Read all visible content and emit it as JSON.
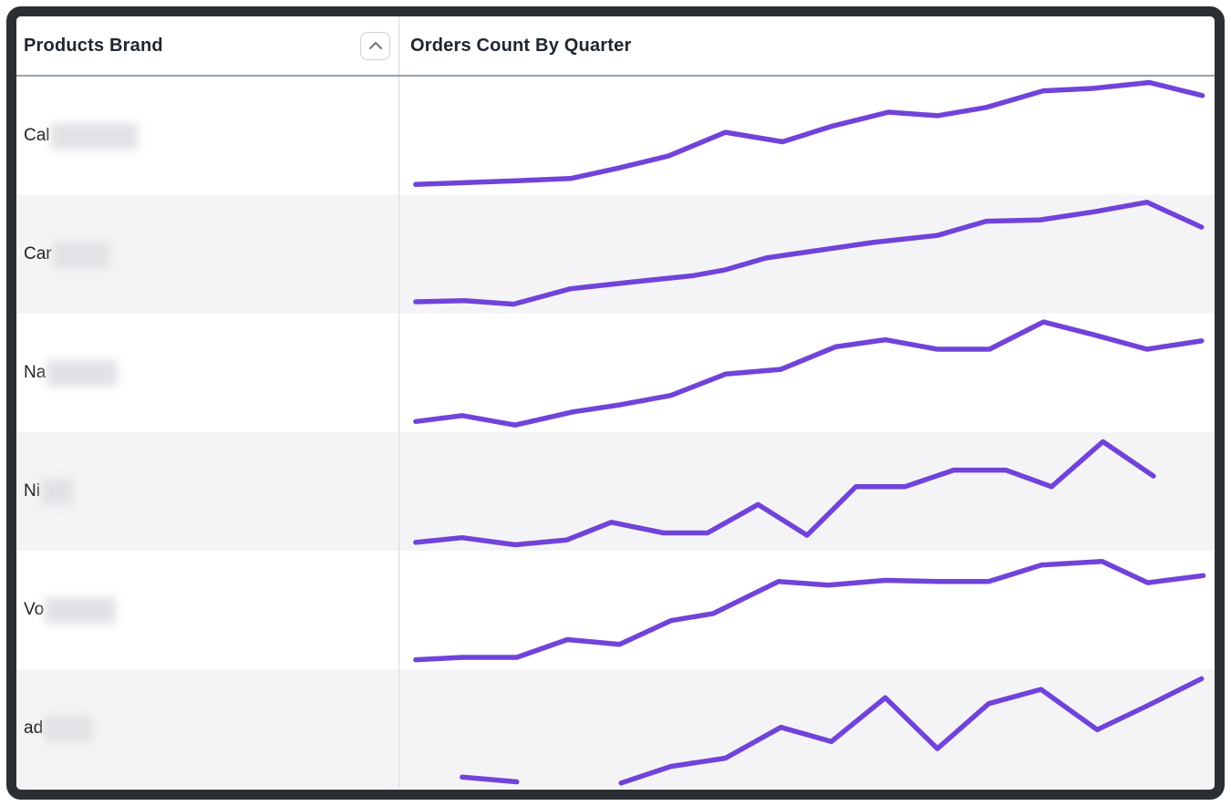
{
  "window": {
    "frame_color": "#2c2f31",
    "stripe_color": "#f4f4f6"
  },
  "table": {
    "header": {
      "brand_column": "Products Brand",
      "chart_column": "Orders Count By Quarter",
      "sort_icon": "chevron-up"
    },
    "rows": [
      {
        "label_prefix": "Cal",
        "redacted": true,
        "redacted_width": 95
      },
      {
        "label_prefix": "Car",
        "redacted": true,
        "redacted_width": 62
      },
      {
        "label_prefix": "Na",
        "redacted": true,
        "redacted_width": 78
      },
      {
        "label_prefix": "Ni",
        "redacted": true,
        "redacted_width": 36
      },
      {
        "label_prefix": "Vo",
        "redacted": true,
        "redacted_width": 78
      },
      {
        "label_prefix": "ad",
        "redacted": true,
        "redacted_width": 53
      }
    ]
  },
  "chart_data": {
    "type": "line",
    "title": "Orders Count By Quarter",
    "xlabel": "quarter (tick labels not shown)",
    "ylabel": "orders count (axis not shown; values estimated, normalized 0-100 per row)",
    "grid": false,
    "legend": "none",
    "line_color": "#7143da",
    "series": [
      {
        "name": "Cal…",
        "segments": [
          [
            {
              "x": 0.02,
              "v": 9
            },
            {
              "x": 0.14,
              "v": 12
            },
            {
              "x": 0.21,
              "v": 14
            },
            {
              "x": 0.27,
              "v": 23
            },
            {
              "x": 0.33,
              "v": 33
            },
            {
              "x": 0.4,
              "v": 53
            },
            {
              "x": 0.47,
              "v": 45
            },
            {
              "x": 0.53,
              "v": 58
            },
            {
              "x": 0.6,
              "v": 70
            },
            {
              "x": 0.66,
              "v": 67
            },
            {
              "x": 0.72,
              "v": 74
            },
            {
              "x": 0.79,
              "v": 88
            },
            {
              "x": 0.85,
              "v": 90
            },
            {
              "x": 0.92,
              "v": 95
            },
            {
              "x": 0.985,
              "v": 84
            }
          ]
        ]
      },
      {
        "name": "Car…",
        "segments": [
          [
            {
              "x": 0.02,
              "v": 10
            },
            {
              "x": 0.08,
              "v": 11
            },
            {
              "x": 0.14,
              "v": 8
            },
            {
              "x": 0.21,
              "v": 21
            },
            {
              "x": 0.29,
              "v": 27
            },
            {
              "x": 0.36,
              "v": 32
            },
            {
              "x": 0.4,
              "v": 37
            },
            {
              "x": 0.45,
              "v": 47
            },
            {
              "x": 0.52,
              "v": 54
            },
            {
              "x": 0.58,
              "v": 60
            },
            {
              "x": 0.66,
              "v": 66
            },
            {
              "x": 0.72,
              "v": 78
            },
            {
              "x": 0.785,
              "v": 79
            },
            {
              "x": 0.853,
              "v": 86
            },
            {
              "x": 0.917,
              "v": 94
            },
            {
              "x": 0.984,
              "v": 73
            }
          ]
        ]
      },
      {
        "name": "Na…",
        "segments": [
          [
            {
              "x": 0.02,
              "v": 9
            },
            {
              "x": 0.077,
              "v": 14
            },
            {
              "x": 0.142,
              "v": 6
            },
            {
              "x": 0.212,
              "v": 17
            },
            {
              "x": 0.27,
              "v": 23
            },
            {
              "x": 0.333,
              "v": 31
            },
            {
              "x": 0.4,
              "v": 49
            },
            {
              "x": 0.468,
              "v": 53
            },
            {
              "x": 0.535,
              "v": 72
            },
            {
              "x": 0.596,
              "v": 78
            },
            {
              "x": 0.66,
              "v": 70
            },
            {
              "x": 0.724,
              "v": 70
            },
            {
              "x": 0.79,
              "v": 93
            },
            {
              "x": 0.853,
              "v": 82
            },
            {
              "x": 0.917,
              "v": 70
            },
            {
              "x": 0.984,
              "v": 77
            }
          ]
        ]
      },
      {
        "name": "Ni…",
        "segments": [
          [
            {
              "x": 0.02,
              "v": 7
            },
            {
              "x": 0.077,
              "v": 11
            },
            {
              "x": 0.142,
              "v": 5
            },
            {
              "x": 0.205,
              "v": 9
            },
            {
              "x": 0.26,
              "v": 24
            },
            {
              "x": 0.324,
              "v": 15
            },
            {
              "x": 0.378,
              "v": 15
            },
            {
              "x": 0.44,
              "v": 39
            },
            {
              "x": 0.5,
              "v": 13
            },
            {
              "x": 0.56,
              "v": 54
            },
            {
              "x": 0.62,
              "v": 54
            },
            {
              "x": 0.68,
              "v": 68
            },
            {
              "x": 0.744,
              "v": 68
            },
            {
              "x": 0.8,
              "v": 54
            },
            {
              "x": 0.863,
              "v": 92
            },
            {
              "x": 0.925,
              "v": 63
            }
          ]
        ]
      },
      {
        "name": "Vo…",
        "segments": [
          [
            {
              "x": 0.02,
              "v": 8
            },
            {
              "x": 0.077,
              "v": 10
            },
            {
              "x": 0.144,
              "v": 10
            },
            {
              "x": 0.206,
              "v": 25
            },
            {
              "x": 0.27,
              "v": 21
            },
            {
              "x": 0.333,
              "v": 41
            },
            {
              "x": 0.385,
              "v": 47
            },
            {
              "x": 0.465,
              "v": 74
            },
            {
              "x": 0.526,
              "v": 71
            },
            {
              "x": 0.596,
              "v": 75
            },
            {
              "x": 0.66,
              "v": 74
            },
            {
              "x": 0.723,
              "v": 74
            },
            {
              "x": 0.788,
              "v": 88
            },
            {
              "x": 0.862,
              "v": 91
            },
            {
              "x": 0.918,
              "v": 73
            },
            {
              "x": 0.986,
              "v": 79
            }
          ]
        ]
      },
      {
        "name": "ad…",
        "segments": [
          [
            {
              "x": 0.077,
              "v": 9
            },
            {
              "x": 0.144,
              "v": 5
            }
          ],
          [
            {
              "x": 0.272,
              "v": 4
            },
            {
              "x": 0.333,
              "v": 18
            },
            {
              "x": 0.4,
              "v": 25
            },
            {
              "x": 0.468,
              "v": 51
            },
            {
              "x": 0.53,
              "v": 39
            },
            {
              "x": 0.596,
              "v": 76
            },
            {
              "x": 0.66,
              "v": 33
            },
            {
              "x": 0.723,
              "v": 71
            },
            {
              "x": 0.787,
              "v": 83
            },
            {
              "x": 0.856,
              "v": 49
            },
            {
              "x": 0.917,
              "v": 69
            },
            {
              "x": 0.984,
              "v": 92
            }
          ]
        ]
      }
    ]
  }
}
